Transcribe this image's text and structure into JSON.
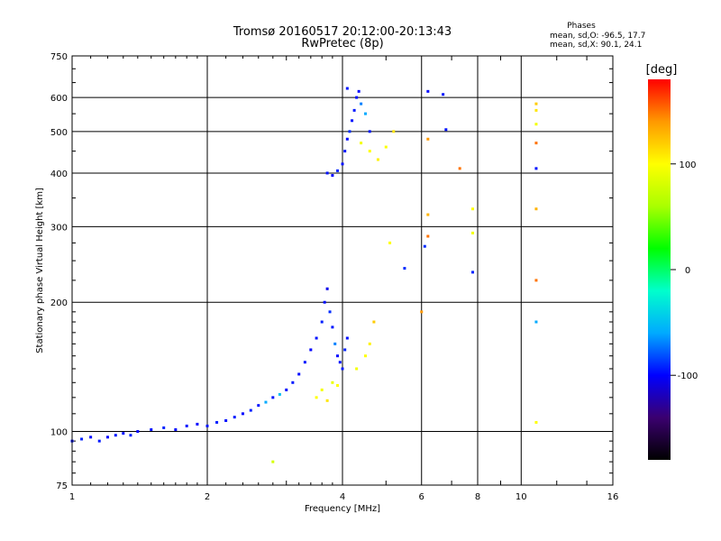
{
  "chart_data": {
    "type": "scatter",
    "title": "Tromsø 20160517 20:12:00-20:13:43",
    "subtitle": "RwPretec (8p)",
    "xlabel": "Frequency [MHz]",
    "ylabel": "Stationary phase Virtual Height [km]",
    "x_scale": "log",
    "y_scale": "log",
    "xlim": [
      1,
      16
    ],
    "ylim": [
      75,
      750
    ],
    "x_ticks": [
      1,
      2,
      4,
      6,
      8,
      10,
      16
    ],
    "x_tick_labels": [
      "1",
      "2",
      "4",
      "6",
      "8",
      "10",
      "16"
    ],
    "y_ticks": [
      75,
      100,
      200,
      300,
      400,
      500,
      600,
      750
    ],
    "y_tick_labels": [
      "75",
      "100",
      "200",
      "300",
      "400",
      "500",
      "600",
      "750"
    ],
    "grid": true,
    "color_variable": "phase",
    "phases_box": {
      "heading": "Phases",
      "line_o": "mean, sd,O: -96.5, 17.7",
      "line_x": "mean, sd,X: 90.1, 24.1"
    },
    "colorbar": {
      "label": "[deg]",
      "range": [
        -180,
        180
      ],
      "ticks": [
        100,
        0,
        -100
      ],
      "tick_labels": [
        "100",
        "0",
        "-100"
      ],
      "colors": [
        "#000000",
        "#3b0070",
        "#0000ff",
        "#00aaff",
        "#00ffcc",
        "#00ff00",
        "#aaff00",
        "#ffff00",
        "#ff9900",
        "#ff0000"
      ]
    },
    "series": [
      {
        "points": [
          [
            1.0,
            95,
            -96
          ],
          [
            1.05,
            96,
            -92
          ],
          [
            1.1,
            97,
            -98
          ],
          [
            1.15,
            95,
            -94
          ],
          [
            1.2,
            97,
            -100
          ],
          [
            1.25,
            98,
            -95
          ],
          [
            1.3,
            99,
            -97
          ],
          [
            1.35,
            98,
            -93
          ],
          [
            1.4,
            100,
            -99
          ],
          [
            1.5,
            101,
            -96
          ],
          [
            1.6,
            102,
            -92
          ],
          [
            1.7,
            101,
            -98
          ],
          [
            1.8,
            103,
            -96
          ],
          [
            1.9,
            104,
            -100
          ],
          [
            2.0,
            103,
            -95
          ],
          [
            2.1,
            105,
            -93
          ],
          [
            2.2,
            106,
            -97
          ],
          [
            2.3,
            108,
            -94
          ],
          [
            2.4,
            110,
            -99
          ],
          [
            2.5,
            112,
            -92
          ],
          [
            2.6,
            115,
            -96
          ],
          [
            2.7,
            117,
            -60
          ],
          [
            2.8,
            120,
            -95
          ],
          [
            2.9,
            122,
            -50
          ],
          [
            3.0,
            125,
            -97
          ],
          [
            3.1,
            130,
            -94
          ],
          [
            3.2,
            136,
            -98
          ],
          [
            3.3,
            145,
            -95
          ],
          [
            3.4,
            155,
            -100
          ],
          [
            3.5,
            165,
            -96
          ],
          [
            3.6,
            180,
            -93
          ],
          [
            3.65,
            200,
            -97
          ],
          [
            3.7,
            215,
            -105
          ],
          [
            3.75,
            190,
            -90
          ],
          [
            3.8,
            175,
            -95
          ],
          [
            3.85,
            160,
            -70
          ],
          [
            3.9,
            150,
            -98
          ],
          [
            3.95,
            145,
            -96
          ],
          [
            4.0,
            140,
            -94
          ],
          [
            4.05,
            155,
            -92
          ],
          [
            4.1,
            165,
            -97
          ],
          [
            3.5,
            120,
            100
          ],
          [
            3.6,
            125,
            95
          ],
          [
            3.7,
            118,
            110
          ],
          [
            3.8,
            130,
            90
          ],
          [
            3.9,
            128,
            100
          ],
          [
            4.3,
            140,
            95
          ],
          [
            4.5,
            150,
            100
          ],
          [
            4.6,
            160,
            105
          ],
          [
            4.7,
            180,
            120
          ],
          [
            3.7,
            400,
            -96
          ],
          [
            3.8,
            395,
            -100
          ],
          [
            3.9,
            405,
            -92
          ],
          [
            4.0,
            420,
            -97
          ],
          [
            4.05,
            450,
            -95
          ],
          [
            4.1,
            480,
            -98
          ],
          [
            4.15,
            500,
            -90
          ],
          [
            4.2,
            530,
            -96
          ],
          [
            4.25,
            560,
            -94
          ],
          [
            4.3,
            600,
            -97
          ],
          [
            4.35,
            620,
            -99
          ],
          [
            4.4,
            580,
            -70
          ],
          [
            4.5,
            550,
            -60
          ],
          [
            4.6,
            500,
            -95
          ],
          [
            4.4,
            470,
            95
          ],
          [
            4.6,
            450,
            100
          ],
          [
            4.8,
            430,
            105
          ],
          [
            5.0,
            460,
            98
          ],
          [
            5.2,
            500,
            110
          ],
          [
            4.1,
            630,
            -95
          ],
          [
            6.2,
            620,
            -98
          ],
          [
            6.7,
            610,
            -95
          ],
          [
            6.2,
            480,
            140
          ],
          [
            6.8,
            505,
            -96
          ],
          [
            7.3,
            410,
            150
          ],
          [
            6.2,
            320,
            130
          ],
          [
            7.8,
            330,
            100
          ],
          [
            7.8,
            290,
            95
          ],
          [
            6.1,
            270,
            -90
          ],
          [
            6.2,
            285,
            150
          ],
          [
            7.8,
            235,
            -92
          ],
          [
            6.0,
            190,
            140
          ],
          [
            10.8,
            580,
            120
          ],
          [
            10.8,
            560,
            110
          ],
          [
            10.8,
            520,
            95
          ],
          [
            10.8,
            470,
            150
          ],
          [
            10.8,
            410,
            -96
          ],
          [
            10.8,
            330,
            130
          ],
          [
            10.8,
            225,
            150
          ],
          [
            10.8,
            180,
            -60
          ],
          [
            10.8,
            105,
            100
          ],
          [
            5.5,
            240,
            -90
          ],
          [
            5.1,
            275,
            100
          ],
          [
            2.8,
            85,
            80
          ]
        ]
      }
    ]
  }
}
